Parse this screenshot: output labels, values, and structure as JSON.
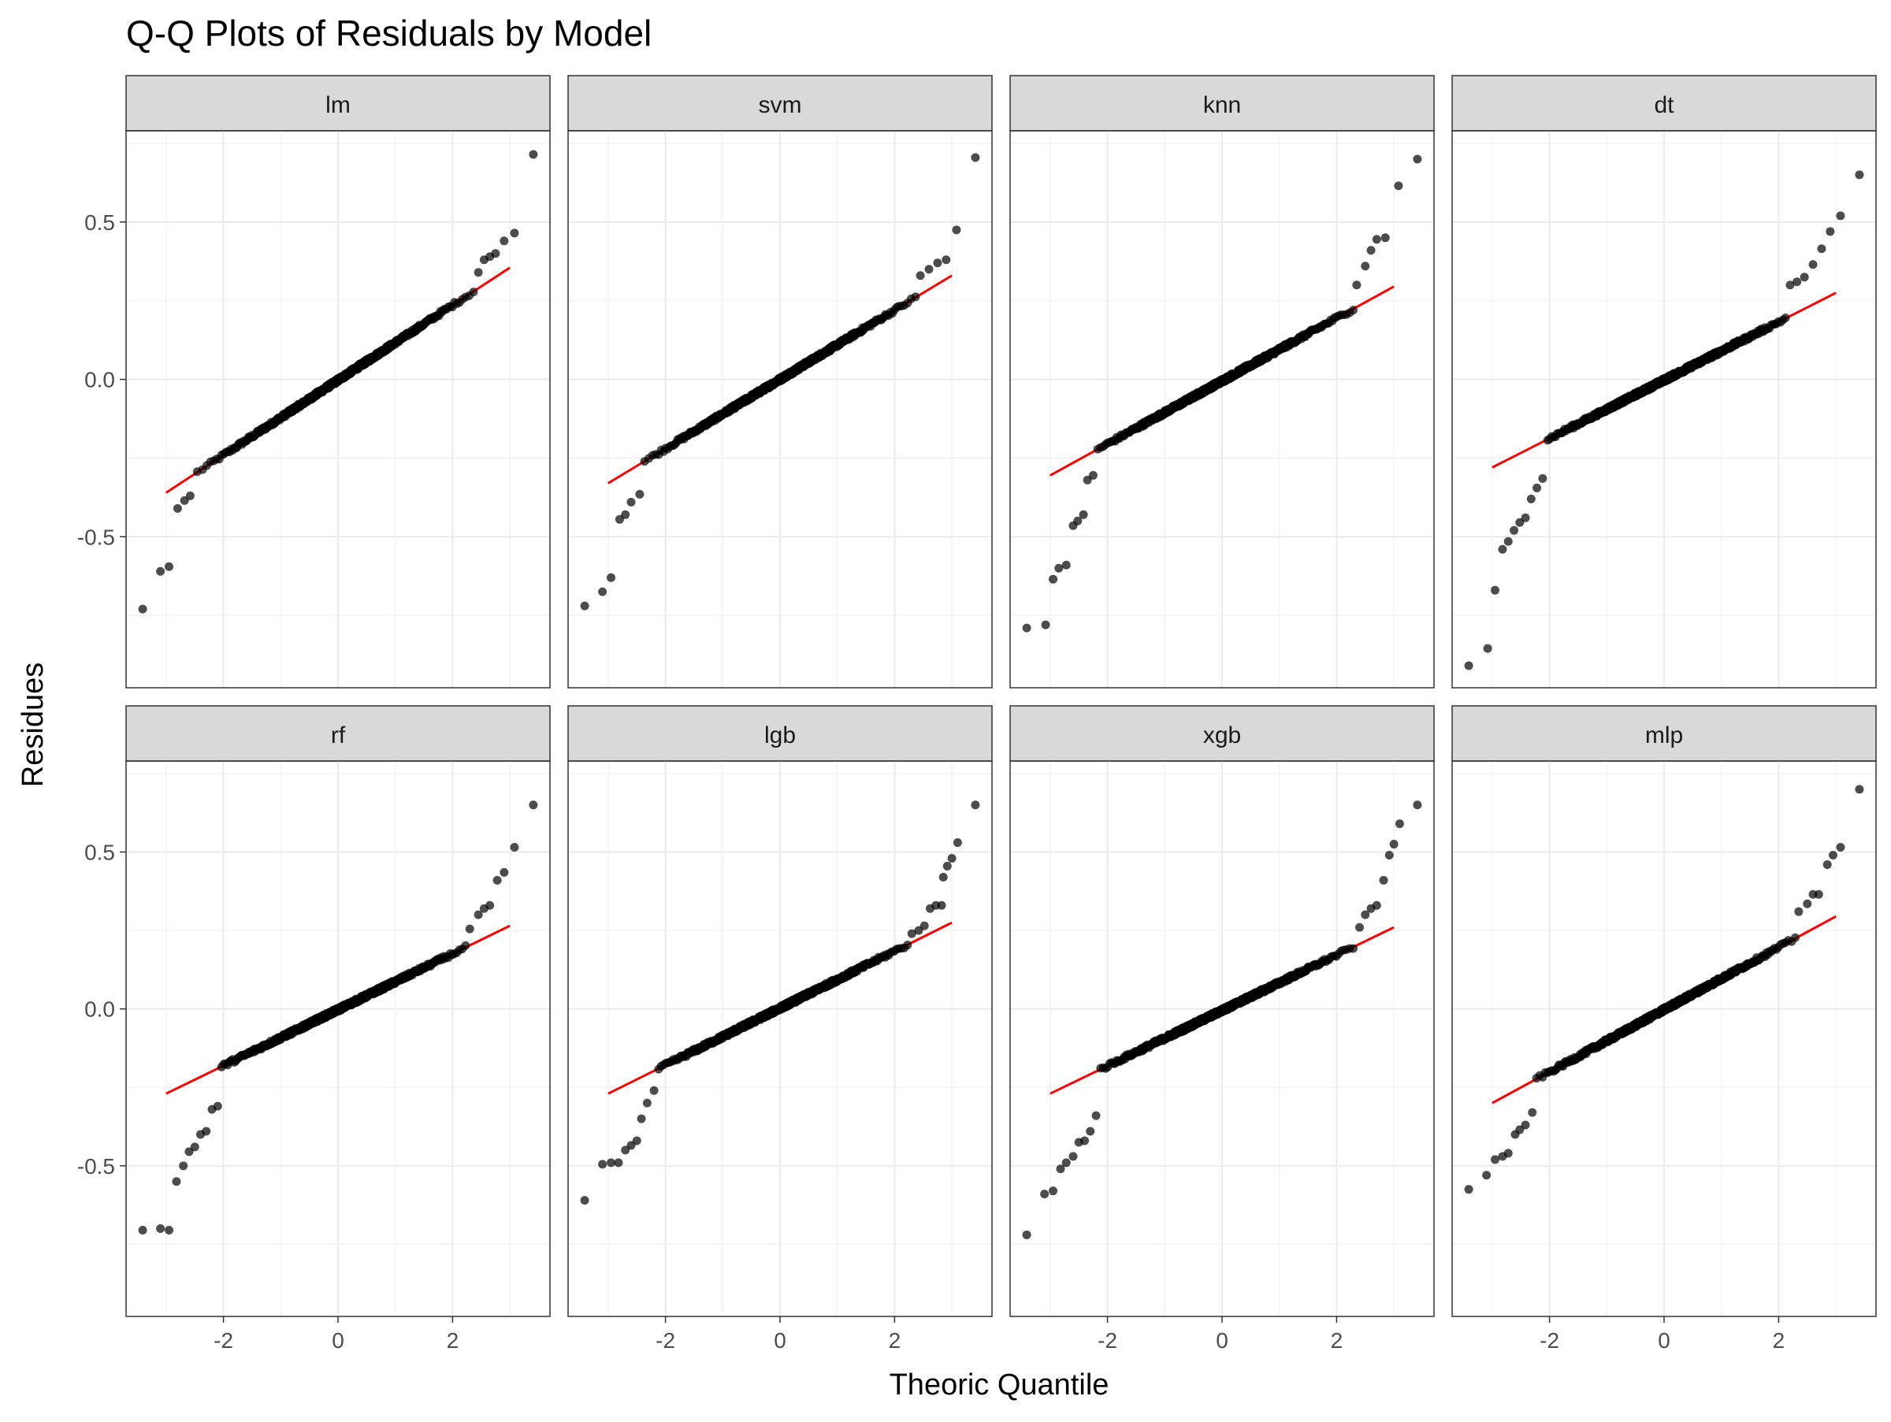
{
  "chart_data": {
    "type": "scatter",
    "title": "Q-Q Plots of Residuals by Model",
    "xlabel": "Theoric Quantile",
    "ylabel": "Residues",
    "xlim": [
      -3.7,
      3.7
    ],
    "ylim": [
      -0.98,
      0.79
    ],
    "x_ticks": [
      -2,
      0,
      2
    ],
    "x_tick_labels": [
      "-2",
      "0",
      "2"
    ],
    "y_ticks": [
      0.5,
      0.0,
      -0.5
    ],
    "y_tick_labels": [
      "0.5",
      "0.0",
      "-0.5"
    ],
    "grid": true,
    "point_color": "#000000",
    "line_color": "#ff0000",
    "strip_color": "#d9d9d9",
    "panels": [
      {
        "name": "lm",
        "line": {
          "x0": -3.0,
          "y0": -0.36,
          "x1": 3.0,
          "y1": 0.355
        },
        "tail_points": [
          [
            -3.41,
            -0.73
          ],
          [
            -3.1,
            -0.61
          ],
          [
            -2.95,
            -0.595
          ],
          [
            -2.8,
            -0.41
          ],
          [
            -2.68,
            -0.385
          ],
          [
            -2.58,
            -0.37
          ],
          [
            2.45,
            0.34
          ],
          [
            2.55,
            0.38
          ],
          [
            2.65,
            0.39
          ],
          [
            2.75,
            0.4
          ],
          [
            2.9,
            0.44
          ],
          [
            3.08,
            0.465
          ],
          [
            3.41,
            0.715
          ]
        ]
      },
      {
        "name": "svm",
        "line": {
          "x0": -3.0,
          "y0": -0.33,
          "x1": 3.0,
          "y1": 0.33
        },
        "tail_points": [
          [
            -3.41,
            -0.72
          ],
          [
            -3.1,
            -0.675
          ],
          [
            -2.95,
            -0.63
          ],
          [
            -2.8,
            -0.445
          ],
          [
            -2.7,
            -0.43
          ],
          [
            -2.6,
            -0.39
          ],
          [
            -2.45,
            -0.365
          ],
          [
            2.45,
            0.33
          ],
          [
            2.6,
            0.35
          ],
          [
            2.75,
            0.37
          ],
          [
            2.9,
            0.38
          ],
          [
            3.08,
            0.475
          ],
          [
            3.41,
            0.705
          ]
        ]
      },
      {
        "name": "knn",
        "line": {
          "x0": -3.0,
          "y0": -0.305,
          "x1": 3.0,
          "y1": 0.295
        },
        "tail_points": [
          [
            -3.41,
            -0.79
          ],
          [
            -3.08,
            -0.78
          ],
          [
            -2.95,
            -0.635
          ],
          [
            -2.85,
            -0.6
          ],
          [
            -2.72,
            -0.59
          ],
          [
            -2.6,
            -0.465
          ],
          [
            -2.52,
            -0.45
          ],
          [
            -2.42,
            -0.43
          ],
          [
            -2.35,
            -0.32
          ],
          [
            -2.25,
            -0.305
          ],
          [
            2.35,
            0.3
          ],
          [
            2.5,
            0.36
          ],
          [
            2.6,
            0.41
          ],
          [
            2.7,
            0.445
          ],
          [
            2.85,
            0.45
          ],
          [
            3.08,
            0.615
          ],
          [
            3.41,
            0.7
          ]
        ]
      },
      {
        "name": "dt",
        "line": {
          "x0": -3.0,
          "y0": -0.28,
          "x1": 3.0,
          "y1": 0.275
        },
        "tail_points": [
          [
            -3.41,
            -0.91
          ],
          [
            -3.08,
            -0.855
          ],
          [
            -2.95,
            -0.67
          ],
          [
            -2.82,
            -0.54
          ],
          [
            -2.72,
            -0.515
          ],
          [
            -2.62,
            -0.48
          ],
          [
            -2.52,
            -0.455
          ],
          [
            -2.42,
            -0.44
          ],
          [
            -2.32,
            -0.38
          ],
          [
            -2.22,
            -0.345
          ],
          [
            -2.12,
            -0.315
          ],
          [
            2.2,
            0.3
          ],
          [
            2.32,
            0.31
          ],
          [
            2.45,
            0.325
          ],
          [
            2.6,
            0.365
          ],
          [
            2.75,
            0.415
          ],
          [
            2.9,
            0.47
          ],
          [
            3.08,
            0.52
          ],
          [
            3.41,
            0.65
          ]
        ]
      },
      {
        "name": "rf",
        "line": {
          "x0": -3.0,
          "y0": -0.27,
          "x1": 3.0,
          "y1": 0.265
        },
        "tail_points": [
          [
            -3.41,
            -0.705
          ],
          [
            -3.1,
            -0.7
          ],
          [
            -2.95,
            -0.705
          ],
          [
            -2.82,
            -0.55
          ],
          [
            -2.7,
            -0.5
          ],
          [
            -2.6,
            -0.455
          ],
          [
            -2.5,
            -0.44
          ],
          [
            -2.4,
            -0.4
          ],
          [
            -2.3,
            -0.39
          ],
          [
            -2.2,
            -0.32
          ],
          [
            -2.1,
            -0.31
          ],
          [
            2.3,
            0.255
          ],
          [
            2.45,
            0.3
          ],
          [
            2.55,
            0.32
          ],
          [
            2.65,
            0.33
          ],
          [
            2.78,
            0.41
          ],
          [
            2.9,
            0.435
          ],
          [
            3.08,
            0.515
          ],
          [
            3.41,
            0.65
          ]
        ]
      },
      {
        "name": "lgb",
        "line": {
          "x0": -3.0,
          "y0": -0.27,
          "x1": 3.0,
          "y1": 0.275
        },
        "tail_points": [
          [
            -3.41,
            -0.61
          ],
          [
            -3.1,
            -0.495
          ],
          [
            -2.95,
            -0.49
          ],
          [
            -2.82,
            -0.49
          ],
          [
            -2.7,
            -0.45
          ],
          [
            -2.6,
            -0.435
          ],
          [
            -2.5,
            -0.42
          ],
          [
            -2.42,
            -0.35
          ],
          [
            -2.32,
            -0.3
          ],
          [
            -2.2,
            -0.26
          ],
          [
            2.3,
            0.24
          ],
          [
            2.42,
            0.25
          ],
          [
            2.52,
            0.265
          ],
          [
            2.62,
            0.32
          ],
          [
            2.72,
            0.33
          ],
          [
            2.82,
            0.33
          ],
          [
            2.85,
            0.42
          ],
          [
            2.92,
            0.455
          ],
          [
            3.0,
            0.48
          ],
          [
            3.1,
            0.53
          ],
          [
            3.41,
            0.65
          ]
        ]
      },
      {
        "name": "xgb",
        "line": {
          "x0": -3.0,
          "y0": -0.27,
          "x1": 3.0,
          "y1": 0.26
        },
        "tail_points": [
          [
            -3.41,
            -0.72
          ],
          [
            -3.1,
            -0.59
          ],
          [
            -2.95,
            -0.58
          ],
          [
            -2.82,
            -0.51
          ],
          [
            -2.72,
            -0.49
          ],
          [
            -2.6,
            -0.47
          ],
          [
            -2.5,
            -0.425
          ],
          [
            -2.4,
            -0.42
          ],
          [
            -2.3,
            -0.39
          ],
          [
            -2.2,
            -0.34
          ],
          [
            2.4,
            0.26
          ],
          [
            2.5,
            0.3
          ],
          [
            2.6,
            0.32
          ],
          [
            2.7,
            0.33
          ],
          [
            2.82,
            0.41
          ],
          [
            2.92,
            0.49
          ],
          [
            3.0,
            0.525
          ],
          [
            3.1,
            0.59
          ],
          [
            3.41,
            0.65
          ]
        ]
      },
      {
        "name": "mlp",
        "line": {
          "x0": -3.0,
          "y0": -0.3,
          "x1": 3.0,
          "y1": 0.295
        },
        "tail_points": [
          [
            -3.41,
            -0.575
          ],
          [
            -3.1,
            -0.53
          ],
          [
            -2.95,
            -0.48
          ],
          [
            -2.82,
            -0.47
          ],
          [
            -2.72,
            -0.46
          ],
          [
            -2.6,
            -0.4
          ],
          [
            -2.52,
            -0.385
          ],
          [
            -2.42,
            -0.37
          ],
          [
            -2.3,
            -0.33
          ],
          [
            2.35,
            0.31
          ],
          [
            2.5,
            0.335
          ],
          [
            2.6,
            0.365
          ],
          [
            2.7,
            0.365
          ],
          [
            2.85,
            0.46
          ],
          [
            2.95,
            0.49
          ],
          [
            3.08,
            0.515
          ],
          [
            3.41,
            0.7
          ]
        ]
      }
    ]
  }
}
